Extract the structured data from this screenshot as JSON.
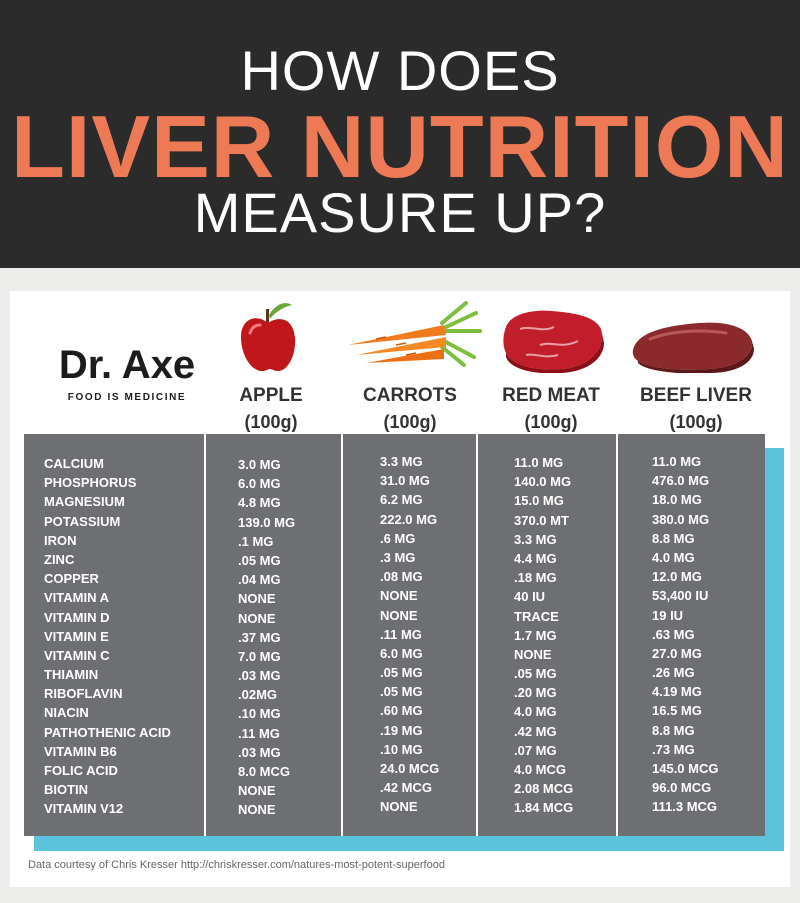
{
  "header": {
    "line1": "HOW DOES",
    "line2": "LIVER NUTRITION",
    "line3": "MEASURE UP?"
  },
  "logo": {
    "name": "Dr. Axe",
    "tagline": "FOOD IS MEDICINE"
  },
  "colors": {
    "header_bg": "#2b2b2b",
    "accent": "#ee7a55",
    "table_bg": "#6d6f73",
    "shadow": "#5bc3dc"
  },
  "columns": [
    {
      "name": "APPLE",
      "portion": "(100g)",
      "icon": "apple-icon"
    },
    {
      "name": "CARROTS",
      "portion": "(100g)",
      "icon": "carrots-icon"
    },
    {
      "name": "RED MEAT",
      "portion": "(100g)",
      "icon": "red-meat-icon"
    },
    {
      "name": "BEEF LIVER",
      "portion": "(100g)",
      "icon": "beef-liver-icon"
    }
  ],
  "nutrients": [
    "CALCIUM",
    "PHOSPHORUS",
    "MAGNESIUM",
    "POTASSIUM",
    "IRON",
    "ZINC",
    "COPPER",
    "VITAMIN A",
    "VITAMIN D",
    "VITAMIN E",
    "VITAMIN C",
    "THIAMIN",
    "RIBOFLAVIN",
    "NIACIN",
    "PATHOTHENIC ACID",
    "VITAMIN B6",
    "FOLIC ACID",
    "BIOTIN",
    "VITAMIN V12"
  ],
  "values": {
    "apple": [
      "3.0 MG",
      "6.0 MG",
      "4.8 MG",
      "139.0 MG",
      ".1 MG",
      ".05 MG",
      ".04 MG",
      "NONE",
      "NONE",
      ".37 MG",
      "7.0 MG",
      ".03 MG",
      ".02MG",
      ".10 MG",
      ".11 MG",
      ".03 MG",
      "8.0 MCG",
      "NONE",
      "NONE"
    ],
    "carrots": [
      "3.3 MG",
      "31.0 MG",
      "6.2 MG",
      "222.0 MG",
      ".6 MG",
      ".3 MG",
      ".08 MG",
      "NONE",
      "NONE",
      ".11 MG",
      "6.0 MG",
      ".05 MG",
      ".05 MG",
      ".60 MG",
      ".19 MG",
      ".10 MG",
      "24.0 MCG",
      ".42 MCG",
      "NONE"
    ],
    "red_meat": [
      "11.0 MG",
      "140.0 MG",
      "15.0 MG",
      "370.0 MT",
      "3.3 MG",
      "4.4 MG",
      ".18 MG",
      "40 IU",
      "TRACE",
      "1.7 MG",
      "NONE",
      ".05 MG",
      ".20 MG",
      "4.0 MG",
      ".42 MG",
      ".07 MG",
      "4.0 MCG",
      "2.08 MCG",
      "1.84 MCG"
    ],
    "beef_liver": [
      "11.0 MG",
      "476.0 MG",
      "18.0 MG",
      "380.0 MG",
      "8.8 MG",
      "4.0 MG",
      "12.0 MG",
      "53,400 IU",
      "19 IU",
      ".63 MG",
      "27.0 MG",
      ".26 MG",
      "4.19 MG",
      "16.5 MG",
      "8.8 MG",
      ".73 MG",
      "145.0 MCG",
      "96.0 MCG",
      "111.3 MCG"
    ]
  },
  "source": "Data courtesy of Chris Kresser http://chriskresser.com/natures-most-potent-superfood"
}
